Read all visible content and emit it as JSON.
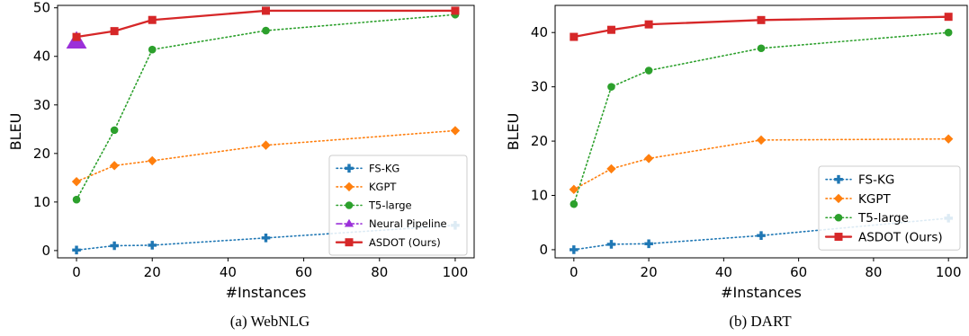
{
  "chart_data": [
    {
      "type": "line",
      "caption": "(a) WebNLG",
      "xlabel": "#Instances",
      "ylabel": "BLEU",
      "xlim": [
        -5,
        105
      ],
      "ylim": [
        -1.5,
        50.5
      ],
      "xticks": [
        0,
        20,
        40,
        60,
        80,
        100
      ],
      "yticks": [
        0,
        10,
        20,
        30,
        40,
        50
      ],
      "grid": false,
      "legend_position": "lower-right",
      "series": [
        {
          "name": "FS-KG",
          "color": "#1f77b4",
          "style": "dotted",
          "marker": "plus",
          "x": [
            0,
            10,
            20,
            50,
            100
          ],
          "y": [
            0.1,
            1.0,
            1.1,
            2.6,
            5.2
          ]
        },
        {
          "name": "KGPT",
          "color": "#ff7f0e",
          "style": "dotted",
          "marker": "diamond",
          "x": [
            0,
            10,
            20,
            50,
            100
          ],
          "y": [
            14.2,
            17.5,
            18.5,
            21.7,
            24.7
          ]
        },
        {
          "name": "T5-large",
          "color": "#2ca02c",
          "style": "dotted",
          "marker": "circle",
          "x": [
            0,
            10,
            20,
            50,
            100
          ],
          "y": [
            10.5,
            24.8,
            41.4,
            45.3,
            48.6
          ]
        },
        {
          "name": "Neural Pipeline",
          "color": "#9b30d9",
          "style": "dashdot",
          "marker": "triangle",
          "x": [
            0
          ],
          "y": [
            43.0
          ]
        },
        {
          "name": "ASDOT (Ours)",
          "color": "#d62728",
          "style": "solid",
          "marker": "square",
          "x": [
            0,
            10,
            20,
            50,
            100
          ],
          "y": [
            44.0,
            45.2,
            47.5,
            49.4,
            49.4
          ]
        }
      ]
    },
    {
      "type": "line",
      "caption": "(b) DART",
      "xlabel": "#Instances",
      "ylabel": "BLEU",
      "xlim": [
        -5,
        105
      ],
      "ylim": [
        -1.5,
        45
      ],
      "xticks": [
        0,
        20,
        40,
        60,
        80,
        100
      ],
      "yticks": [
        0,
        10,
        20,
        30,
        40
      ],
      "grid": false,
      "legend_position": "lower-right",
      "series": [
        {
          "name": "FS-KG",
          "color": "#1f77b4",
          "style": "dotted",
          "marker": "plus",
          "x": [
            0,
            10,
            20,
            50,
            100
          ],
          "y": [
            0.0,
            1.0,
            1.1,
            2.6,
            5.8
          ]
        },
        {
          "name": "KGPT",
          "color": "#ff7f0e",
          "style": "dotted",
          "marker": "diamond",
          "x": [
            0,
            10,
            20,
            50,
            100
          ],
          "y": [
            11.1,
            14.9,
            16.8,
            20.2,
            20.4
          ]
        },
        {
          "name": "T5-large",
          "color": "#2ca02c",
          "style": "dotted",
          "marker": "circle",
          "x": [
            0,
            10,
            20,
            50,
            100
          ],
          "y": [
            8.4,
            30.0,
            33.0,
            37.1,
            40.0
          ]
        },
        {
          "name": "ASDOT (Ours)",
          "color": "#d62728",
          "style": "solid",
          "marker": "square",
          "x": [
            0,
            10,
            20,
            50,
            100
          ],
          "y": [
            39.2,
            40.5,
            41.5,
            42.3,
            42.9
          ]
        }
      ]
    }
  ]
}
